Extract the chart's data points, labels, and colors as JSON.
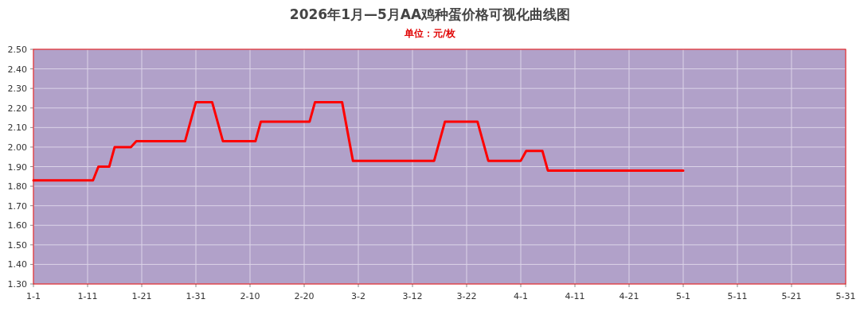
{
  "chart_data": {
    "type": "line",
    "title": "2026年1月—5月AA鸡种蛋价格可视化曲线图",
    "subtitle": "单位：元/枚",
    "x": [
      "--01-01",
      "--01-12",
      "--01-13",
      "--01-15",
      "--01-16",
      "--01-19",
      "--01-20",
      "--01-29",
      "--01-31",
      "--02-03",
      "--02-05",
      "--02-11",
      "--02-12",
      "--02-21",
      "--02-22",
      "--02-27",
      "--03-01",
      "--03-16",
      "--03-18",
      "--03-24",
      "--03-26",
      "--04-01",
      "--04-02",
      "--04-05",
      "--04-06",
      "--05-01"
    ],
    "series": [
      {
        "color": "#ff0000",
        "values": [
          1.83,
          1.83,
          1.9,
          1.9,
          2.0,
          2.0,
          2.03,
          2.03,
          2.23,
          2.23,
          2.03,
          2.03,
          2.13,
          2.13,
          2.23,
          2.23,
          1.93,
          1.93,
          2.13,
          2.13,
          1.93,
          1.93,
          1.98,
          1.98,
          1.88,
          1.88
        ]
      }
    ],
    "xlim": [
      "--01-01",
      "--05-31"
    ],
    "xticks": [
      {
        "value": "--01-01",
        "label": "1-1"
      },
      {
        "value": "--01-11",
        "label": "1-11"
      },
      {
        "value": "--01-21",
        "label": "1-21"
      },
      {
        "value": "--01-31",
        "label": "1-31"
      },
      {
        "value": "--02-10",
        "label": "2-10"
      },
      {
        "value": "--02-20",
        "label": "2-20"
      },
      {
        "value": "--03-02",
        "label": "3-2"
      },
      {
        "value": "--03-12",
        "label": "3-12"
      },
      {
        "value": "--03-22",
        "label": "3-22"
      },
      {
        "value": "--04-01",
        "label": "4-1"
      },
      {
        "value": "--04-11",
        "label": "4-11"
      },
      {
        "value": "--04-21",
        "label": "4-21"
      },
      {
        "value": "--05-01",
        "label": "5-1"
      },
      {
        "value": "--05-11",
        "label": "5-11"
      },
      {
        "value": "--05-21",
        "label": "5-21"
      },
      {
        "value": "--05-31",
        "label": "5-31"
      }
    ],
    "ylim": [
      1.3,
      2.5
    ],
    "yticks": [
      {
        "value": 1.3,
        "label": "1.30"
      },
      {
        "value": 1.4,
        "label": "1.40"
      },
      {
        "value": 1.5,
        "label": "1.50"
      },
      {
        "value": 1.6,
        "label": "1.60"
      },
      {
        "value": 1.7,
        "label": "1.70"
      },
      {
        "value": 1.8,
        "label": "1.80"
      },
      {
        "value": 1.9,
        "label": "1.90"
      },
      {
        "value": 2.0,
        "label": "2.00"
      },
      {
        "value": 2.1,
        "label": "2.10"
      },
      {
        "value": 2.2,
        "label": "2.20"
      },
      {
        "value": 2.3,
        "label": "2.30"
      },
      {
        "value": 2.4,
        "label": "2.40"
      },
      {
        "value": 2.5,
        "label": "2.50"
      }
    ],
    "grid": true,
    "line_style": "solid"
  }
}
